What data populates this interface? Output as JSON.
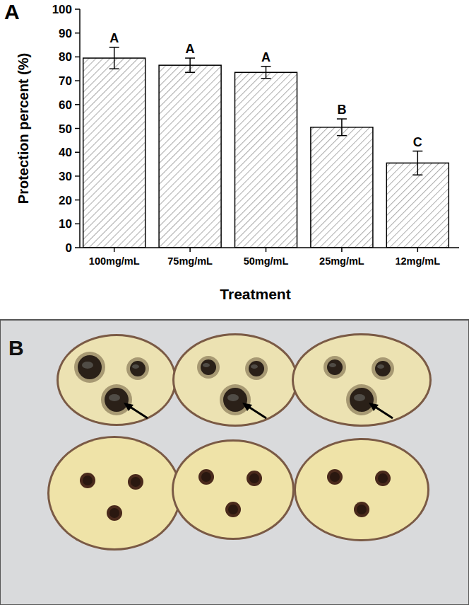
{
  "chart_data": {
    "type": "bar",
    "panel_label": "A",
    "categories": [
      "100mg/mL",
      "75mg/mL",
      "50mg/mL",
      "25mg/mL",
      "12mg/mL"
    ],
    "values": [
      79.5,
      76.5,
      73.5,
      50.5,
      35.5
    ],
    "errors": [
      4.5,
      3,
      2.5,
      3.5,
      5
    ],
    "annotations": [
      "A",
      "A",
      "A",
      "B",
      "C"
    ],
    "x_label": "Treatment",
    "y_label": "Protection percent (%)",
    "ylim": [
      0,
      100
    ],
    "yticks": [
      0,
      10,
      20,
      30,
      40,
      50,
      60,
      70,
      80,
      90,
      100
    ],
    "color": "#7f7f7f",
    "grid": false
  },
  "photo": {
    "panel_label": "B"
  }
}
